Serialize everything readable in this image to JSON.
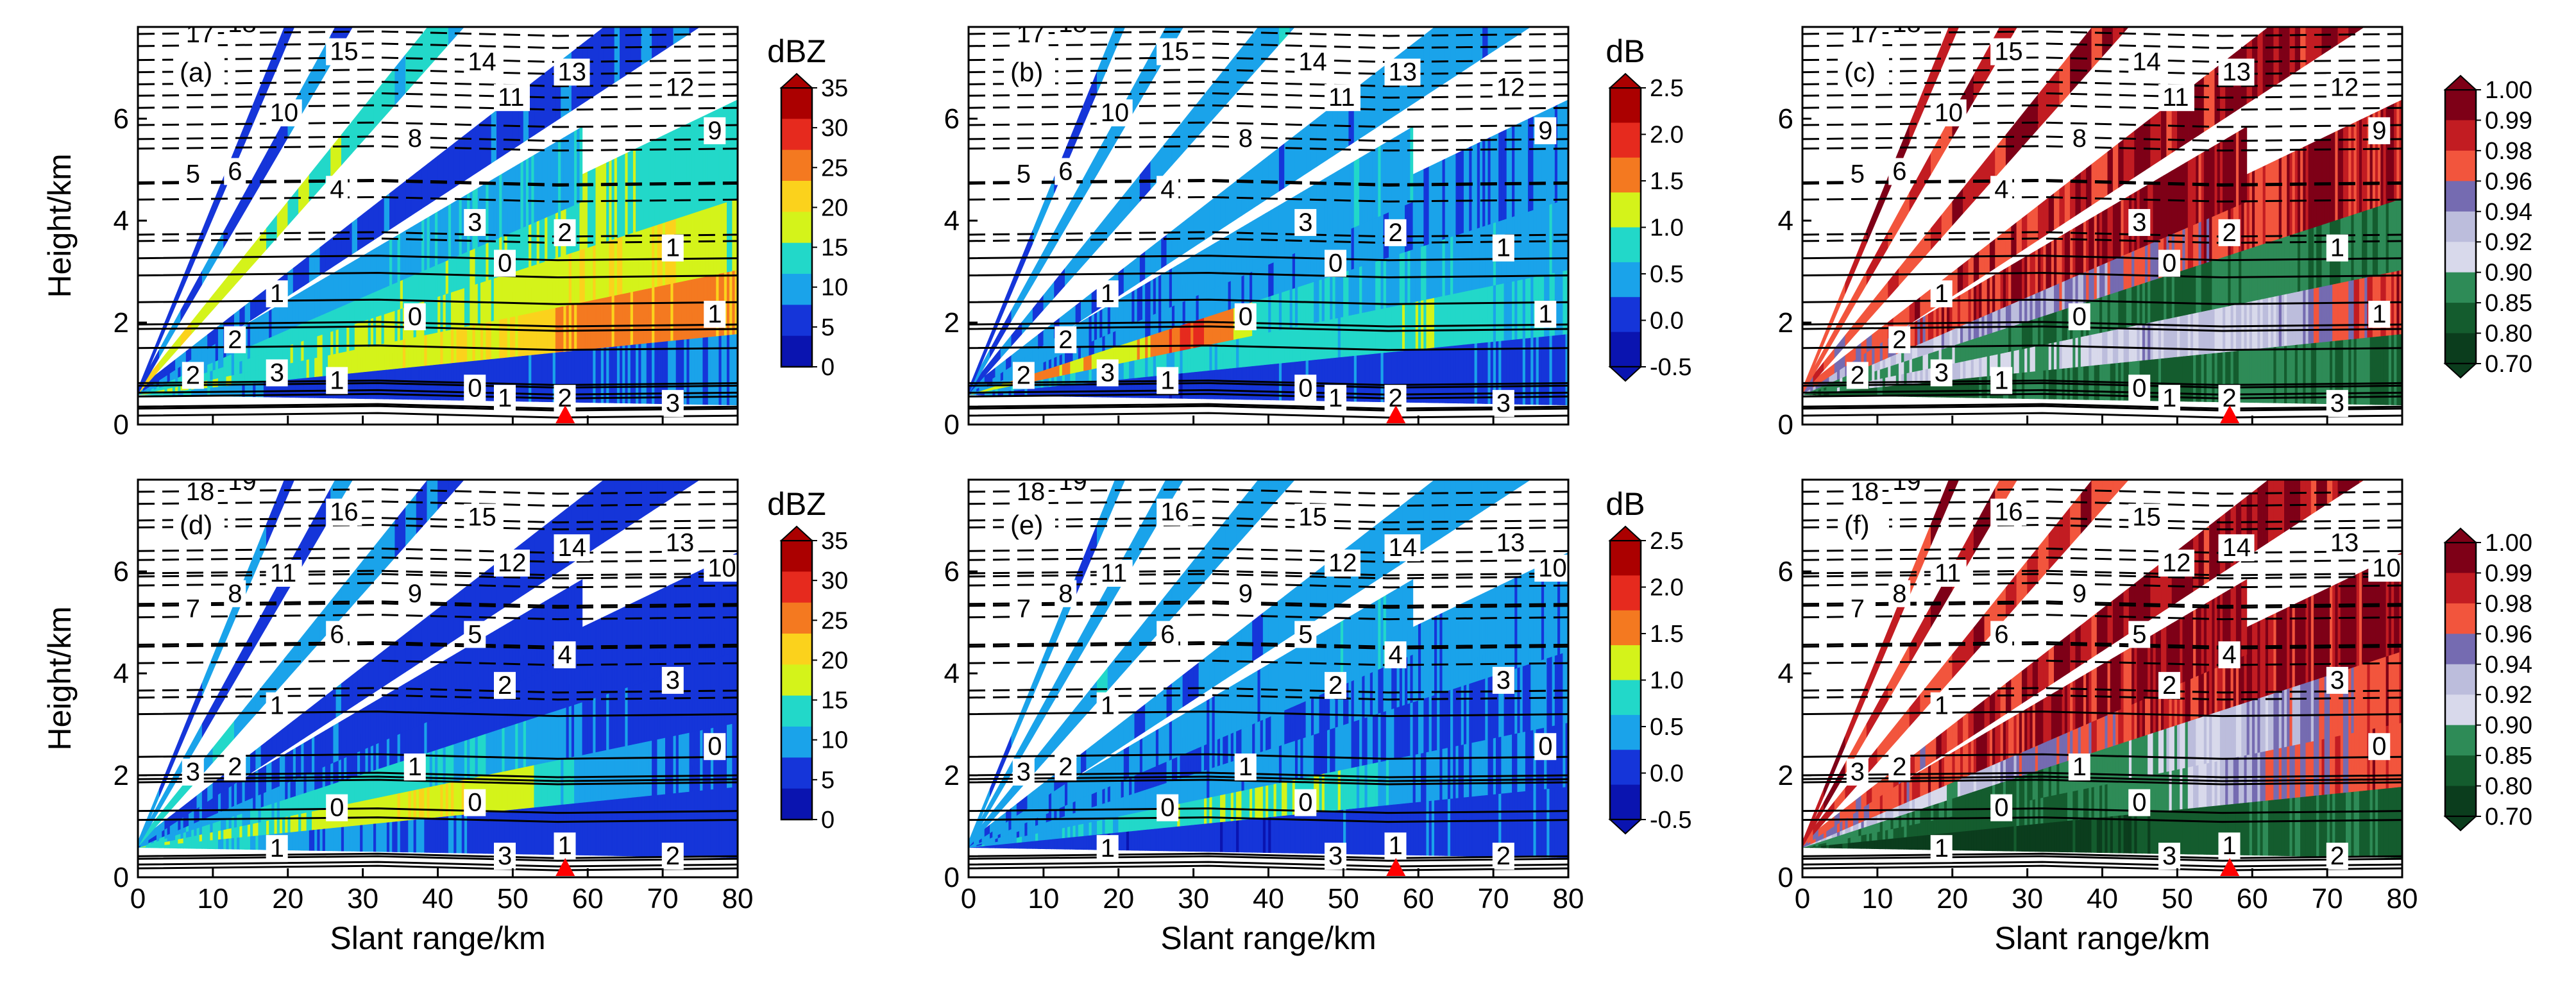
{
  "figure": {
    "xlabel": "Slant range/km",
    "ylabel": "Height/km",
    "xlim": [
      0,
      80
    ],
    "ylim": [
      0,
      7.8
    ],
    "x_ticks": [
      "0",
      "10",
      "20",
      "30",
      "40",
      "50",
      "60",
      "70",
      "80"
    ],
    "y_ticks": [
      "0",
      "2",
      "4",
      "6"
    ],
    "radar_marker_range_km": 57,
    "colors": {
      "frame": "#000000",
      "marker": "#ff0000",
      "fill_gap": "#ffffff"
    }
  },
  "colorbars": [
    {
      "id": "zh",
      "title": "dBZ",
      "labels": [
        "35",
        "30",
        "25",
        "20",
        "15",
        "10",
        "5",
        "0"
      ],
      "colors": [
        "#ab0000",
        "#e62a1e",
        "#f47920",
        "#fbd21c",
        "#d4f31a",
        "#22d8c9",
        "#1aa3ea",
        "#1535d9",
        "#0a14b0"
      ]
    },
    {
      "id": "zdr",
      "title": "dB",
      "labels": [
        "2.5",
        "2.0",
        "1.5",
        "1.0",
        "0.5",
        "0.0",
        "-0.5"
      ],
      "colors": [
        "#ab0000",
        "#e62a1e",
        "#f47920",
        "#d4f31a",
        "#22d8c9",
        "#1aa3ea",
        "#1535d9",
        "#0a14b0"
      ]
    },
    {
      "id": "rhv",
      "title": "",
      "labels": [
        "1.00",
        "0.99",
        "0.98",
        "0.96",
        "0.94",
        "0.92",
        "0.90",
        "0.85",
        "0.80",
        "0.70"
      ],
      "colors": [
        "#7e0017",
        "#c21c22",
        "#f2553d",
        "#756bb1",
        "#bcbddc",
        "#d8d9eb",
        "#2e8b57",
        "#145c2e",
        "#0b3d1d"
      ]
    }
  ],
  "chart_data": [
    {
      "panel": "(a)",
      "type": "heatmap",
      "variable": "dBZ",
      "colorbar": "zh",
      "x": [
        0,
        10,
        20,
        30,
        40,
        50,
        60,
        70,
        80
      ],
      "sweeps": [
        {
          "elev_deg": 0.5,
          "values": [
            13,
            8,
            3,
            2,
            2,
            3,
            4,
            5,
            6
          ]
        },
        {
          "elev_deg": 1.5,
          "values": [
            16,
            14,
            13,
            17,
            19,
            21,
            27,
            26,
            25
          ]
        },
        {
          "elev_deg": 2.4,
          "values": [
            12,
            11,
            13,
            16,
            15,
            17,
            19,
            20,
            16
          ]
        },
        {
          "elev_deg": 3.4,
          "values": [
            9,
            11,
            12,
            13,
            14,
            14,
            15,
            13,
            12
          ]
        },
        {
          "elev_deg": 4.3,
          "values": [
            6,
            6,
            7,
            8,
            9,
            9
          ]
        },
        {
          "elev_deg": 6.0,
          "values": [
            5,
            4,
            3,
            4,
            5
          ]
        },
        {
          "elev_deg": 9.9,
          "values": [
            22,
            9,
            8
          ]
        },
        {
          "elev_deg": 14.6,
          "values": [
            6,
            5
          ]
        },
        {
          "elev_deg": 19.5,
          "values": [
            4,
            4
          ]
        }
      ],
      "contours": [
        {
          "label": "19",
          "level": 7.9
        },
        {
          "label": "18",
          "level": 7.7
        },
        {
          "label": "17",
          "level": 7.5
        },
        {
          "label": "15",
          "level": 7.15
        },
        {
          "label": "14",
          "level": 6.95
        },
        {
          "label": "13",
          "level": 6.75
        },
        {
          "label": "12",
          "level": 6.45
        },
        {
          "label": "11",
          "level": 6.25
        },
        {
          "label": "10",
          "level": 5.95
        },
        {
          "label": "9",
          "level": 5.6
        },
        {
          "label": "8",
          "level": 5.45
        },
        {
          "label": "6",
          "level": 4.8
        },
        {
          "label": "5",
          "level": 4.75
        },
        {
          "label": "4",
          "level": 4.45
        },
        {
          "label": "3",
          "level": 3.8
        },
        {
          "label": "2",
          "level": 3.6
        },
        {
          "label": "1",
          "level": 3.3
        },
        {
          "label": "0",
          "level": 3.0
        },
        {
          "label": "1",
          "level": 2.4
        },
        {
          "label": "1",
          "level": 2.0
        },
        {
          "label": "0",
          "level": 1.95
        },
        {
          "label": "2",
          "level": 1.5
        },
        {
          "label": "2",
          "level": 0.8
        },
        {
          "label": "1",
          "level": 0.7
        },
        {
          "label": "0",
          "level": 0.55
        },
        {
          "label": "2",
          "level": 0.35
        },
        {
          "label": "3",
          "level": 0.25
        },
        {
          "label": "1",
          "level": 0.35
        },
        {
          "label": "3",
          "level": 0.85
        }
      ]
    },
    {
      "panel": "(b)",
      "type": "heatmap",
      "variable": "dB",
      "colorbar": "zdr",
      "x": [
        0,
        10,
        20,
        30,
        40,
        50,
        60,
        70,
        80
      ],
      "sweeps": [
        {
          "elev_deg": 0.5,
          "values": [
            0.0,
            -0.2,
            -0.3,
            -0.3,
            -0.2,
            -0.2,
            -0.2,
            -0.1,
            -0.1
          ]
        },
        {
          "elev_deg": 1.5,
          "values": [
            0.3,
            0.5,
            0.4,
            0.6,
            0.8,
            0.7,
            0.9,
            0.6,
            0.5
          ]
        },
        {
          "elev_deg": 2.4,
          "values": [
            1.2,
            1.8,
            1.1,
            2.2,
            0.6,
            0.5,
            0.4,
            0.3,
            0.3
          ]
        },
        {
          "elev_deg": 3.4,
          "values": [
            0.2,
            0.1,
            0.2,
            0.1,
            0.2,
            0.2,
            0.1,
            0.1,
            0.1
          ]
        },
        {
          "elev_deg": 4.3,
          "values": [
            0.1,
            0.2,
            0.1,
            0.2,
            0.2,
            0.3
          ]
        },
        {
          "elev_deg": 6.0,
          "values": [
            0.0,
            0.1,
            0.2,
            0.1,
            0.3
          ]
        },
        {
          "elev_deg": 9.9,
          "values": [
            -0.1,
            0.3,
            0.9
          ]
        },
        {
          "elev_deg": 14.6,
          "values": [
            0.1,
            0.2
          ]
        },
        {
          "elev_deg": 19.5,
          "values": [
            -0.2,
            0.1
          ]
        }
      ]
    },
    {
      "panel": "(c)",
      "type": "heatmap",
      "variable": "correlation coefficient",
      "colorbar": "rhv",
      "x": [
        0,
        10,
        20,
        30,
        40,
        50,
        60,
        70,
        80
      ],
      "sweeps": [
        {
          "elev_deg": 0.5,
          "values": [
            0.8,
            0.84,
            0.82,
            0.86,
            0.85,
            0.83,
            0.86,
            0.85,
            0.84
          ]
        },
        {
          "elev_deg": 1.5,
          "values": [
            0.88,
            0.91,
            0.93,
            0.89,
            0.92,
            0.93,
            0.91,
            0.96,
            0.98
          ]
        },
        {
          "elev_deg": 2.4,
          "values": [
            0.85,
            0.9,
            0.89,
            0.84,
            0.86,
            0.84,
            0.87,
            0.85,
            0.86
          ]
        },
        {
          "elev_deg": 3.4,
          "values": [
            0.86,
            0.91,
            0.93,
            0.94,
            0.95,
            0.97,
            0.98,
            0.99,
            0.985
          ]
        },
        {
          "elev_deg": 4.3,
          "values": [
            0.93,
            0.96,
            0.98,
            0.985,
            0.99,
            0.995
          ]
        },
        {
          "elev_deg": 6.0,
          "values": [
            0.96,
            0.98,
            0.99,
            0.995,
            0.995
          ]
        },
        {
          "elev_deg": 9.9,
          "values": [
            0.97,
            0.99,
            0.98
          ]
        },
        {
          "elev_deg": 14.6,
          "values": [
            0.99,
            0.98
          ]
        },
        {
          "elev_deg": 19.5,
          "values": [
            0.98,
            0.99
          ]
        }
      ]
    },
    {
      "panel": "(d)",
      "type": "heatmap",
      "variable": "dBZ",
      "colorbar": "zh",
      "x": [
        0,
        10,
        20,
        30,
        40,
        50,
        60,
        70,
        80
      ],
      "sweeps": [
        {
          "elev_deg": 0.5,
          "values": [
            14,
            11,
            7,
            5,
            4,
            3,
            3,
            3,
            3
          ]
        },
        {
          "elev_deg": 1.5,
          "values": [
            15,
            14,
            15,
            18,
            20,
            17,
            8,
            6,
            4
          ]
        },
        {
          "elev_deg": 2.4,
          "values": [
            11,
            10,
            12,
            13,
            11,
            9,
            4,
            3,
            2
          ]
        },
        {
          "elev_deg": 3.4,
          "values": [
            9,
            8,
            5,
            4,
            3,
            3,
            2,
            2,
            2
          ]
        },
        {
          "elev_deg": 4.3,
          "values": [
            6,
            5,
            4,
            3,
            3,
            2
          ]
        },
        {
          "elev_deg": 6.0,
          "values": [
            5,
            4,
            3,
            3,
            2
          ]
        },
        {
          "elev_deg": 9.9,
          "values": [
            12,
            5,
            4
          ]
        },
        {
          "elev_deg": 14.6,
          "values": [
            5,
            4
          ]
        },
        {
          "elev_deg": 19.5,
          "values": [
            4,
            3
          ]
        }
      ],
      "contours": [
        {
          "label": "20",
          "level": 7.9
        },
        {
          "label": "19",
          "level": 7.6
        },
        {
          "label": "18",
          "level": 7.4
        },
        {
          "label": "16",
          "level": 7.0
        },
        {
          "label": "15",
          "level": 6.9
        },
        {
          "label": "14",
          "level": 6.3
        },
        {
          "label": "13",
          "level": 6.4
        },
        {
          "label": "12",
          "level": 6.0
        },
        {
          "label": "11",
          "level": 5.8
        },
        {
          "label": "10",
          "level": 5.9
        },
        {
          "label": "9",
          "level": 5.4
        },
        {
          "label": "8",
          "level": 5.4
        },
        {
          "label": "7",
          "level": 5.1
        },
        {
          "label": "6",
          "level": 4.6
        },
        {
          "label": "5",
          "level": 4.6
        },
        {
          "label": "4",
          "level": 4.2
        },
        {
          "label": "3",
          "level": 3.7
        },
        {
          "label": "2",
          "level": 3.6
        },
        {
          "label": "1",
          "level": 3.2
        },
        {
          "label": "0",
          "level": 2.4
        },
        {
          "label": "1",
          "level": 2.0
        },
        {
          "label": "2",
          "level": 2.0
        },
        {
          "label": "3",
          "level": 1.9
        },
        {
          "label": "0",
          "level": 1.2
        },
        {
          "label": "0",
          "level": 1.3
        },
        {
          "label": "1",
          "level": 0.45
        },
        {
          "label": "2",
          "level": 0.25
        },
        {
          "label": "3",
          "level": 0.25
        },
        {
          "label": "1",
          "level": 0.4
        }
      ]
    },
    {
      "panel": "(e)",
      "type": "heatmap",
      "variable": "dB",
      "colorbar": "zdr",
      "x": [
        0,
        10,
        20,
        30,
        40,
        50,
        60,
        70,
        80
      ],
      "sweeps": [
        {
          "elev_deg": 0.5,
          "values": [
            -0.2,
            -0.3,
            -0.3,
            -0.3,
            -0.3,
            -0.2,
            -0.2,
            -0.2,
            -0.2
          ]
        },
        {
          "elev_deg": 1.5,
          "values": [
            0.3,
            0.4,
            0.6,
            0.9,
            1.1,
            0.8,
            0.1,
            0.0,
            -0.1
          ]
        },
        {
          "elev_deg": 2.4,
          "values": [
            0.1,
            0.2,
            0.3,
            0.2,
            0.1,
            0.0,
            -0.1,
            -0.1,
            0.0
          ]
        },
        {
          "elev_deg": 3.4,
          "values": [
            0.2,
            0.1,
            0.0,
            -0.1,
            0.0,
            0.1,
            0.1,
            0.2,
            0.2
          ]
        },
        {
          "elev_deg": 4.3,
          "values": [
            0.1,
            0.2,
            0.1,
            0.2,
            0.2,
            0.3
          ]
        },
        {
          "elev_deg": 6.0,
          "values": [
            0.1,
            0.1,
            0.2,
            0.2,
            0.3
          ]
        },
        {
          "elev_deg": 9.9,
          "values": [
            0.4,
            0.2,
            0.1
          ]
        },
        {
          "elev_deg": 14.6,
          "values": [
            0.2,
            0.3
          ]
        },
        {
          "elev_deg": 19.5,
          "values": [
            0.1,
            0.2
          ]
        }
      ]
    },
    {
      "panel": "(f)",
      "type": "heatmap",
      "variable": "correlation coefficient",
      "colorbar": "rhv",
      "x": [
        0,
        10,
        20,
        30,
        40,
        50,
        60,
        70,
        80
      ],
      "sweeps": [
        {
          "elev_deg": 0.5,
          "values": [
            0.8,
            0.78,
            0.76,
            0.79,
            0.8,
            0.82,
            0.84,
            0.85,
            0.84
          ]
        },
        {
          "elev_deg": 1.5,
          "values": [
            0.86,
            0.85,
            0.82,
            0.84,
            0.86,
            0.9,
            0.95,
            0.97,
            0.98
          ]
        },
        {
          "elev_deg": 2.4,
          "values": [
            0.88,
            0.86,
            0.84,
            0.85,
            0.88,
            0.91,
            0.93,
            0.96,
            0.98
          ]
        },
        {
          "elev_deg": 3.4,
          "values": [
            0.92,
            0.93,
            0.91,
            0.95,
            0.97,
            0.985,
            0.99,
            0.995,
            0.995
          ]
        },
        {
          "elev_deg": 4.3,
          "values": [
            0.95,
            0.97,
            0.98,
            0.985,
            0.99,
            0.995
          ]
        },
        {
          "elev_deg": 6.0,
          "values": [
            0.96,
            0.98,
            0.99,
            0.995,
            0.995
          ]
        },
        {
          "elev_deg": 9.9,
          "values": [
            0.97,
            0.98,
            0.96
          ]
        },
        {
          "elev_deg": 14.6,
          "values": [
            0.98,
            0.99
          ]
        },
        {
          "elev_deg": 19.5,
          "values": [
            0.98,
            0.97
          ]
        }
      ]
    }
  ]
}
